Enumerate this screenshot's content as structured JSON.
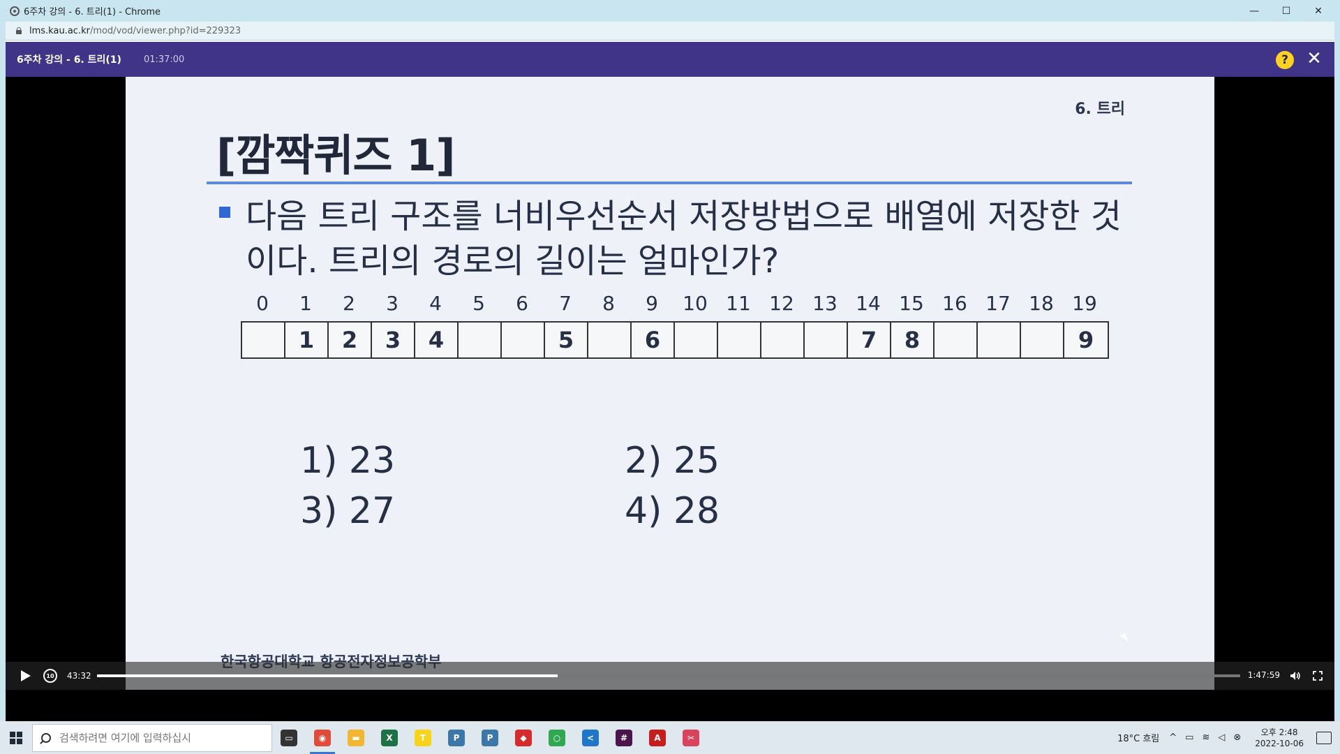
{
  "browser": {
    "window_title": "6주차 강의 - 6. 트리(1) - Chrome",
    "url_host": "lms.kau.ac.kr",
    "url_path": "/mod/vod/viewer.php?id=229323",
    "minimize_label": "—",
    "maximize_label": "☐",
    "close_label": "✕"
  },
  "viewer": {
    "course_title": "6주차 강의 - 6. 트리(1)",
    "duration": "01:37:00",
    "help_label": "?",
    "close_label": "✕"
  },
  "slide": {
    "chapter": "6. 트리",
    "quiz_title": "[깜짝퀴즈 1]",
    "question": "다음 트리 구조를 너비우선순서 저장방법으로 배열에 저장한 것이다. 트리의 경로의 길이는 얼마인가?",
    "array_indices": [
      "0",
      "1",
      "2",
      "3",
      "4",
      "5",
      "6",
      "7",
      "8",
      "9",
      "10",
      "11",
      "12",
      "13",
      "14",
      "15",
      "16",
      "17",
      "18",
      "19"
    ],
    "array_values": [
      "",
      "1",
      "2",
      "3",
      "4",
      "",
      "",
      "5",
      "",
      "6",
      "",
      "",
      "",
      "",
      "7",
      "8",
      "",
      "",
      "",
      "9"
    ],
    "options": [
      {
        "label": "1) 23"
      },
      {
        "label": "2) 25"
      },
      {
        "label": "3) 27"
      },
      {
        "label": "4) 28"
      }
    ],
    "footer": "한국항공대학교 항공전자정보공학부"
  },
  "player": {
    "current_time": "43:32",
    "total_time": "1:47:59",
    "progress": 0.403,
    "rewind_label": "10"
  },
  "taskbar": {
    "search_placeholder": "검색하려면 여기에 입력하십시",
    "apps": [
      {
        "name": "task-view",
        "icon": "task-view-icon",
        "color": "#333333",
        "glyph": "▭"
      },
      {
        "name": "chrome",
        "icon": "chrome-icon",
        "color": "#e14b3a",
        "glyph": "◉",
        "active": true
      },
      {
        "name": "file-explorer",
        "icon": "folder-icon",
        "color": "#f2b630",
        "glyph": "▬"
      },
      {
        "name": "excel",
        "icon": "excel-icon",
        "color": "#1e7145",
        "glyph": "X"
      },
      {
        "name": "kakaotalk",
        "icon": "kakaotalk-icon",
        "color": "#f7d417",
        "glyph": "T"
      },
      {
        "name": "python-1",
        "icon": "python-icon",
        "color": "#3b77a8",
        "glyph": "P"
      },
      {
        "name": "python-2",
        "icon": "python-icon",
        "color": "#3b77a8",
        "glyph": "P"
      },
      {
        "name": "shield-app",
        "icon": "shield-icon",
        "color": "#d62b2b",
        "glyph": "◆"
      },
      {
        "name": "refresh-app",
        "icon": "refresh-icon",
        "color": "#2fa84f",
        "glyph": "○"
      },
      {
        "name": "vscode",
        "icon": "vscode-icon",
        "color": "#1f76c9",
        "glyph": "<"
      },
      {
        "name": "slack",
        "icon": "slack-icon",
        "color": "#4a154b",
        "glyph": "#"
      },
      {
        "name": "acrobat",
        "icon": "pdf-icon",
        "color": "#c81d1d",
        "glyph": "A"
      },
      {
        "name": "snipping",
        "icon": "snip-icon",
        "color": "#d9435b",
        "glyph": "✂"
      }
    ],
    "weather": "18°C 흐림",
    "time": "오후 2:48",
    "date": "2022-10-06"
  }
}
